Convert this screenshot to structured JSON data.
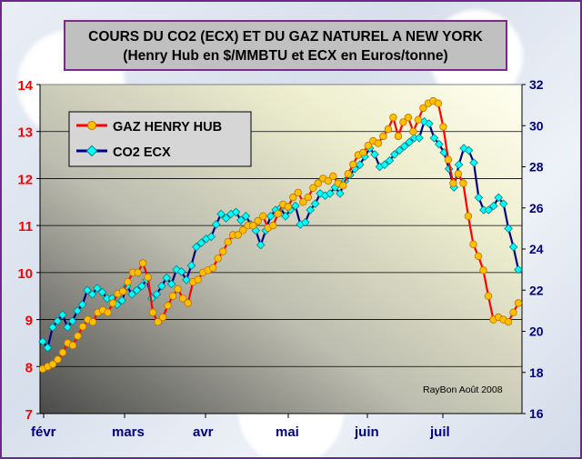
{
  "chart_data": {
    "type": "line",
    "title": "COURS DU CO2 (ECX) ET DU GAZ NATUREL A NEW YORK",
    "subtitle": "(Henry Hub en $/MMBTU et ECX en Euros/tonne)",
    "credit": "RayBon Août 2008",
    "x_labels": [
      "févr",
      "mars",
      "avr",
      "mai",
      "juin",
      "juil"
    ],
    "y_left": {
      "min": 7,
      "max": 14,
      "ticks": [
        "7",
        "8",
        "9",
        "10",
        "11",
        "12",
        "13",
        "14"
      ],
      "color": "#ff0000"
    },
    "y_right": {
      "min": 16,
      "max": 32,
      "ticks": [
        "16",
        "18",
        "20",
        "22",
        "24",
        "26",
        "28",
        "30",
        "32"
      ],
      "color": "#000080"
    },
    "legend": {
      "position": "top-left"
    },
    "series": [
      {
        "name": "GAZ HENRY HUB",
        "axis": "left",
        "line_color": "#ff0000",
        "marker_color": "#ffc000",
        "values": [
          7.95,
          8.0,
          8.05,
          8.15,
          8.3,
          8.5,
          8.45,
          8.65,
          8.85,
          9.0,
          8.95,
          9.15,
          9.2,
          9.15,
          9.35,
          9.55,
          9.6,
          9.8,
          10.0,
          10.0,
          10.2,
          9.9,
          9.15,
          8.95,
          9.05,
          9.3,
          9.5,
          9.65,
          9.45,
          9.35,
          9.8,
          9.85,
          10.0,
          10.05,
          10.1,
          10.3,
          10.45,
          10.65,
          10.8,
          10.8,
          10.9,
          11.0,
          11.0,
          11.1,
          11.2,
          10.95,
          11.0,
          11.25,
          11.45,
          11.4,
          11.6,
          11.7,
          11.5,
          11.6,
          11.8,
          11.9,
          12.0,
          11.95,
          12.05,
          11.9,
          11.85,
          12.1,
          12.3,
          12.5,
          12.55,
          12.7,
          12.8,
          12.75,
          12.9,
          13.05,
          13.3,
          12.9,
          13.2,
          13.3,
          13.0,
          13.25,
          13.5,
          13.6,
          13.65,
          13.6,
          13.1,
          12.4,
          11.9,
          12.1,
          11.9,
          11.2,
          10.6,
          10.35,
          10.05,
          9.5,
          9.0,
          9.05,
          9.0,
          8.95,
          9.15,
          9.35
        ]
      },
      {
        "name": "CO2 ECX",
        "axis": "right",
        "line_color": "#000080",
        "marker_color": "#00ffff",
        "values": [
          19.5,
          19.2,
          20.2,
          20.5,
          20.8,
          20.2,
          20.5,
          21.0,
          21.3,
          22.0,
          21.8,
          22.1,
          21.9,
          21.6,
          21.6,
          21.3,
          21.5,
          22.2,
          21.8,
          22.0,
          22.2,
          22.5,
          21.6,
          21.8,
          22.2,
          22.6,
          22.3,
          23.0,
          22.9,
          22.5,
          23.2,
          24.1,
          24.3,
          24.5,
          24.6,
          25.2,
          25.7,
          25.5,
          25.7,
          25.8,
          25.4,
          25.6,
          25.2,
          24.9,
          24.2,
          24.9,
          25.6,
          25.9,
          26.0,
          25.6,
          25.9,
          26.1,
          25.2,
          25.3,
          25.9,
          26.2,
          26.7,
          26.6,
          26.7,
          27.0,
          26.7,
          27.3,
          27.6,
          27.9,
          28.1,
          28.5,
          28.9,
          28.6,
          28.0,
          28.1,
          28.3,
          28.6,
          28.8,
          29.0,
          29.2,
          29.4,
          29.4,
          30.2,
          30.1,
          29.4,
          29.1,
          28.7,
          27.9,
          27.0,
          28.1,
          28.9,
          28.8,
          28.2,
          26.5,
          25.9,
          25.9,
          26.1,
          26.5,
          26.2,
          25.0,
          24.1,
          23.0
        ]
      }
    ]
  }
}
